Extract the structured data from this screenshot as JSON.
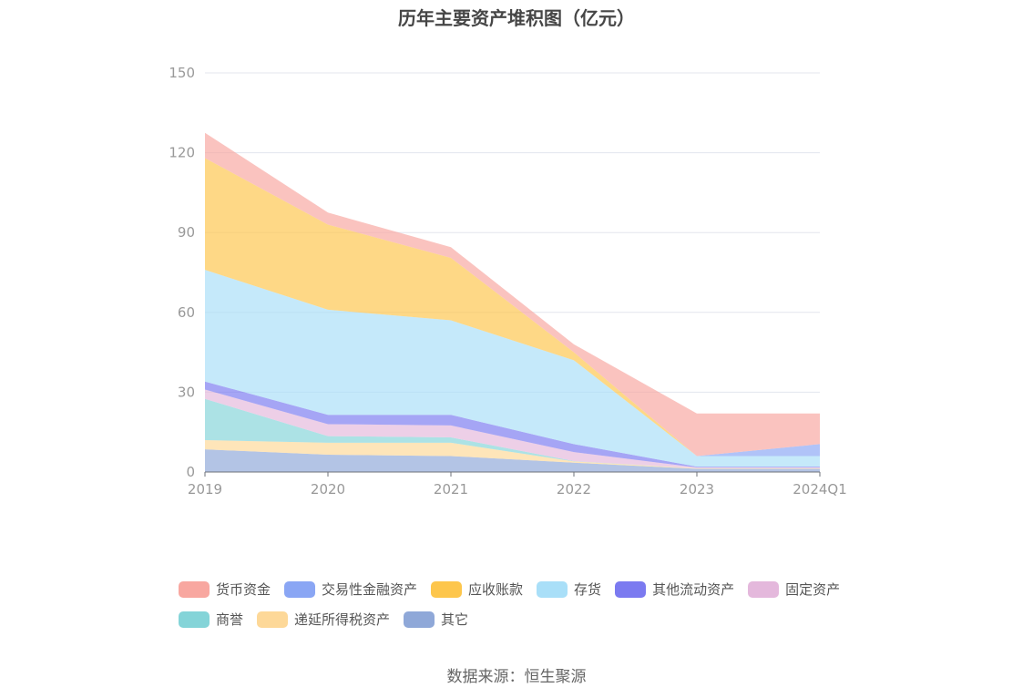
{
  "chart_data": {
    "type": "area",
    "stacked": true,
    "title": "历年主要资产堆积图（亿元）",
    "x": [
      "2019",
      "2020",
      "2021",
      "2022",
      "2023",
      "2024Q1"
    ],
    "ylim": [
      0,
      150
    ],
    "yticks": [
      "0",
      "30",
      "60",
      "90",
      "120",
      "150"
    ],
    "grid": true,
    "legend_position": "bottom",
    "series": [
      {
        "name": "其它",
        "color": "#8fa8d8",
        "values": [
          8.5,
          6.5,
          6,
          3.5,
          1.2,
          1.2
        ]
      },
      {
        "name": "递延所得税资产",
        "color": "#fdd898",
        "values": [
          3.5,
          4.5,
          5,
          0.5,
          0.2,
          0.2
        ]
      },
      {
        "name": "商誉",
        "color": "#84d4d8",
        "values": [
          15.5,
          2.5,
          2,
          0.1,
          0,
          0
        ]
      },
      {
        "name": "固定资产",
        "color": "#e4b8dc",
        "values": [
          3.5,
          4.5,
          4.5,
          3.4,
          0.3,
          0.3
        ]
      },
      {
        "name": "其他流动资产",
        "color": "#7b7af0",
        "values": [
          3,
          3.5,
          4,
          3,
          0.3,
          0.3
        ]
      },
      {
        "name": "存货",
        "color": "#a9dff8",
        "values": [
          42,
          39.5,
          35.5,
          31.5,
          4,
          4
        ]
      },
      {
        "name": "应收账款",
        "color": "#fdc64c",
        "values": [
          42,
          32,
          23.5,
          3,
          0,
          0
        ]
      },
      {
        "name": "交易性金融资产",
        "color": "#8aa6f4",
        "values": [
          0,
          0,
          0,
          0,
          0,
          4.5
        ]
      },
      {
        "name": "货币资金",
        "color": "#f8a7a0",
        "values": [
          9.5,
          4.5,
          4,
          3,
          16,
          11.5
        ]
      }
    ]
  },
  "legend": {
    "row1": [
      "货币资金",
      "交易性金融资产",
      "应收账款",
      "存货",
      "其他流动资产",
      "固定资产"
    ],
    "row2": [
      "商誉",
      "递延所得税资产",
      "其它"
    ]
  },
  "source": "数据来源：恒生聚源"
}
